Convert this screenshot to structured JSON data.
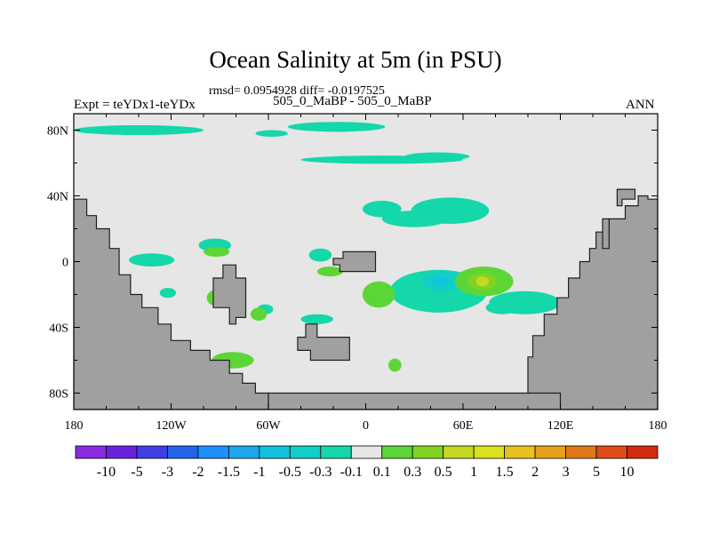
{
  "title": "Ocean Salinity at 5m (in PSU)",
  "stats_line": "rmsd= 0.0954928 diff= -0.0197525",
  "left_label": "Expt = teYDx1-teYDx",
  "center_label": "505_0_MaBP - 505_0_MaBP",
  "right_label": "ANN",
  "colors": {
    "land": "#a0a0a0",
    "neutral": "#e6e6e6",
    "coast": "#202020"
  },
  "chart_data": {
    "type": "heatmap",
    "title": "Ocean Salinity at 5m (in PSU)",
    "subtitle": "rmsd= 0.0954928 diff= -0.0197525",
    "units": "PSU",
    "xlim": [
      -180,
      180
    ],
    "ylim": [
      -90,
      90
    ],
    "x_ticks": [
      {
        "value": -180,
        "label": "180"
      },
      {
        "value": -120,
        "label": "120W"
      },
      {
        "value": -60,
        "label": "60W"
      },
      {
        "value": 0,
        "label": "0"
      },
      {
        "value": 60,
        "label": "60E"
      },
      {
        "value": 120,
        "label": "120E"
      },
      {
        "value": 180,
        "label": "180"
      }
    ],
    "y_ticks": [
      {
        "value": 80,
        "label": "80N"
      },
      {
        "value": 40,
        "label": "40N"
      },
      {
        "value": 0,
        "label": "0"
      },
      {
        "value": -40,
        "label": "40S"
      },
      {
        "value": -80,
        "label": "80S"
      }
    ],
    "colorbar": {
      "levels": [
        "-10",
        "-5",
        "-3",
        "-2",
        "-1.5",
        "-1",
        "-0.5",
        "-0.3",
        "-0.1",
        "0.1",
        "0.3",
        "0.5",
        "1",
        "1.5",
        "2",
        "3",
        "5",
        "10"
      ],
      "colors": [
        "#8a2be2",
        "#6a22e0",
        "#3f3fe6",
        "#2563eb",
        "#1e90ff",
        "#1aa7ec",
        "#11c2dc",
        "#10cfc8",
        "#14d7aa",
        "#e6e6e6",
        "#5cd636",
        "#80d420",
        "#c6d820",
        "#dde21e",
        "#e8c21c",
        "#e8a01a",
        "#e07818",
        "#e04c14",
        "#d42a10"
      ]
    },
    "land_regions": [
      {
        "name": "south-america",
        "points": [
          [
            -180,
            38
          ],
          [
            -172,
            38
          ],
          [
            -172,
            28
          ],
          [
            -166,
            28
          ],
          [
            -166,
            20
          ],
          [
            -158,
            20
          ],
          [
            -158,
            8
          ],
          [
            -152,
            8
          ],
          [
            -152,
            -8
          ],
          [
            -145,
            -8
          ],
          [
            -145,
            -20
          ],
          [
            -138,
            -20
          ],
          [
            -138,
            -28
          ],
          [
            -128,
            -28
          ],
          [
            -128,
            -38
          ],
          [
            -120,
            -38
          ],
          [
            -120,
            -48
          ],
          [
            -108,
            -48
          ],
          [
            -108,
            -54
          ],
          [
            -96,
            -54
          ],
          [
            -96,
            -60
          ],
          [
            -84,
            -60
          ],
          [
            -84,
            -68
          ],
          [
            -76,
            -68
          ],
          [
            -76,
            -74
          ],
          [
            -68,
            -74
          ],
          [
            -68,
            -80
          ],
          [
            -60,
            -80
          ],
          [
            -60,
            -90
          ],
          [
            -180,
            -90
          ]
        ]
      },
      {
        "name": "africa",
        "points": [
          [
            100,
            -90
          ],
          [
            100,
            -58
          ],
          [
            103,
            -58
          ],
          [
            103,
            -45
          ],
          [
            110,
            -45
          ],
          [
            110,
            -32
          ],
          [
            118,
            -32
          ],
          [
            118,
            -22
          ],
          [
            125,
            -22
          ],
          [
            125,
            -10
          ],
          [
            132,
            -10
          ],
          [
            132,
            0
          ],
          [
            138,
            0
          ],
          [
            138,
            8
          ],
          [
            142,
            8
          ],
          [
            142,
            18
          ],
          [
            150,
            18
          ],
          [
            150,
            26
          ],
          [
            160,
            26
          ],
          [
            160,
            34
          ],
          [
            168,
            34
          ],
          [
            168,
            40
          ],
          [
            174,
            40
          ],
          [
            174,
            38
          ],
          [
            180,
            38
          ],
          [
            180,
            -90
          ]
        ]
      },
      {
        "name": "antarctica-rim",
        "points": [
          [
            -60,
            -90
          ],
          [
            -60,
            -80
          ],
          [
            0,
            -80
          ],
          [
            60,
            -80
          ],
          [
            110,
            -80
          ],
          [
            120,
            -80
          ],
          [
            120,
            -90
          ]
        ]
      },
      {
        "name": "island-a",
        "points": [
          [
            -88,
            -2
          ],
          [
            -80,
            -2
          ],
          [
            -80,
            -10
          ],
          [
            -74,
            -10
          ],
          [
            -74,
            -34
          ],
          [
            -80,
            -34
          ],
          [
            -80,
            -38
          ],
          [
            -84,
            -38
          ],
          [
            -84,
            -28
          ],
          [
            -94,
            -28
          ],
          [
            -94,
            -10
          ],
          [
            -88,
            -10
          ]
        ]
      },
      {
        "name": "island-b",
        "points": [
          [
            -37,
            -38
          ],
          [
            -30,
            -38
          ],
          [
            -30,
            -46
          ],
          [
            -10,
            -46
          ],
          [
            -10,
            -60
          ],
          [
            -34,
            -60
          ],
          [
            -34,
            -54
          ],
          [
            -42,
            -54
          ],
          [
            -42,
            -46
          ],
          [
            -37,
            -46
          ]
        ]
      },
      {
        "name": "island-c",
        "points": [
          [
            -20,
            2
          ],
          [
            -14,
            2
          ],
          [
            -14,
            6
          ],
          [
            6,
            6
          ],
          [
            6,
            -6
          ],
          [
            -16,
            -6
          ],
          [
            -16,
            -2
          ],
          [
            -20,
            -2
          ]
        ]
      },
      {
        "name": "island-d",
        "points": [
          [
            155,
            44
          ],
          [
            166,
            44
          ],
          [
            166,
            38
          ],
          [
            158,
            38
          ],
          [
            158,
            34
          ],
          [
            155,
            34
          ]
        ]
      },
      {
        "name": "island-e",
        "points": [
          [
            146,
            26
          ],
          [
            150,
            26
          ],
          [
            150,
            8
          ],
          [
            146,
            8
          ]
        ]
      }
    ],
    "anomaly_patches": [
      {
        "name": "arctic-band-1",
        "level": "-0.1",
        "ellipse": [
          -140,
          80,
          40,
          3
        ]
      },
      {
        "name": "arctic-band-2",
        "level": "-0.1",
        "ellipse": [
          -18,
          82,
          30,
          3
        ]
      },
      {
        "name": "arctic-band-3",
        "level": "-0.1",
        "ellipse": [
          10,
          62,
          50,
          2.5
        ]
      },
      {
        "name": "arctic-band-4",
        "level": "-0.1",
        "ellipse": [
          44,
          64,
          20,
          2.5
        ]
      },
      {
        "name": "arctic-band-5",
        "level": "-0.1",
        "ellipse": [
          -58,
          78,
          10,
          2
        ]
      },
      {
        "name": "midlat-n-1",
        "level": "-0.1",
        "ellipse": [
          52,
          31,
          24,
          8
        ]
      },
      {
        "name": "midlat-n-2",
        "level": "-0.1",
        "ellipse": [
          10,
          32,
          12,
          5
        ]
      },
      {
        "name": "midlat-n-3",
        "level": "-0.1",
        "ellipse": [
          30,
          26,
          20,
          5
        ]
      },
      {
        "name": "tropic-w-1",
        "level": "-0.1",
        "ellipse": [
          -132,
          1,
          14,
          4
        ]
      },
      {
        "name": "tropic-w-2",
        "level": "-0.1",
        "ellipse": [
          -93,
          10,
          10,
          4
        ]
      },
      {
        "name": "tropic-w-3",
        "level": "-0.1",
        "ellipse": [
          -28,
          4,
          7,
          4
        ]
      },
      {
        "name": "tropic-w-4",
        "level": "-0.1",
        "ellipse": [
          -122,
          -19,
          5,
          3
        ]
      },
      {
        "name": "tropic-w-5",
        "level": "-0.1",
        "ellipse": [
          -138,
          -32,
          5,
          3
        ]
      },
      {
        "name": "tropic-w-6",
        "level": "-0.1",
        "ellipse": [
          -30,
          -35,
          10,
          3
        ]
      },
      {
        "name": "tropic-w-7",
        "level": "-0.1",
        "ellipse": [
          -62,
          -29,
          5,
          3
        ]
      },
      {
        "name": "east-1",
        "level": "-0.1",
        "ellipse": [
          45,
          -18,
          30,
          13
        ]
      },
      {
        "name": "east-2",
        "level": "-0.1",
        "ellipse": [
          98,
          -25,
          22,
          7
        ]
      },
      {
        "name": "east-3",
        "level": "-0.1",
        "ellipse": [
          84,
          -28,
          10,
          4
        ]
      },
      {
        "name": "east-4",
        "level": "-0.1",
        "ellipse": [
          132,
          -32,
          8,
          3
        ]
      },
      {
        "name": "blue-core",
        "level": "-0.3",
        "ellipse": [
          48,
          -12,
          13,
          6
        ]
      },
      {
        "name": "blue-core-2",
        "level": "-0.5",
        "ellipse": [
          46,
          -12,
          5,
          2.5
        ]
      },
      {
        "name": "green-1",
        "level": "0.1",
        "ellipse": [
          -92,
          6,
          8,
          3
        ]
      },
      {
        "name": "green-2",
        "level": "0.1",
        "ellipse": [
          -22,
          -6,
          8,
          3
        ]
      },
      {
        "name": "green-3",
        "level": "0.1",
        "ellipse": [
          -92,
          -22,
          6,
          5
        ]
      },
      {
        "name": "green-4",
        "level": "0.1",
        "ellipse": [
          -66,
          -32,
          5,
          4
        ]
      },
      {
        "name": "green-5",
        "level": "0.1",
        "ellipse": [
          8,
          -20,
          10,
          8
        ]
      },
      {
        "name": "green-6",
        "level": "0.1",
        "ellipse": [
          73,
          -12,
          18,
          9
        ]
      },
      {
        "name": "green-7",
        "level": "0.1",
        "ellipse": [
          -82,
          -60,
          13,
          5
        ]
      },
      {
        "name": "green-8",
        "level": "0.1",
        "ellipse": [
          -96,
          -68,
          6,
          3
        ]
      },
      {
        "name": "green-9",
        "level": "0.1",
        "ellipse": [
          18,
          -63,
          4,
          4
        ]
      },
      {
        "name": "green-10",
        "level": "0.1",
        "ellipse": [
          168,
          -10,
          8,
          8
        ]
      },
      {
        "name": "green-11",
        "level": "0.1",
        "ellipse": [
          110,
          -82,
          9,
          2
        ]
      },
      {
        "name": "yellow-core",
        "level": "0.3",
        "ellipse": [
          72,
          -12,
          9,
          5
        ]
      },
      {
        "name": "yellow-core-2",
        "level": "0.5",
        "ellipse": [
          72,
          -12,
          4,
          3
        ]
      }
    ]
  }
}
